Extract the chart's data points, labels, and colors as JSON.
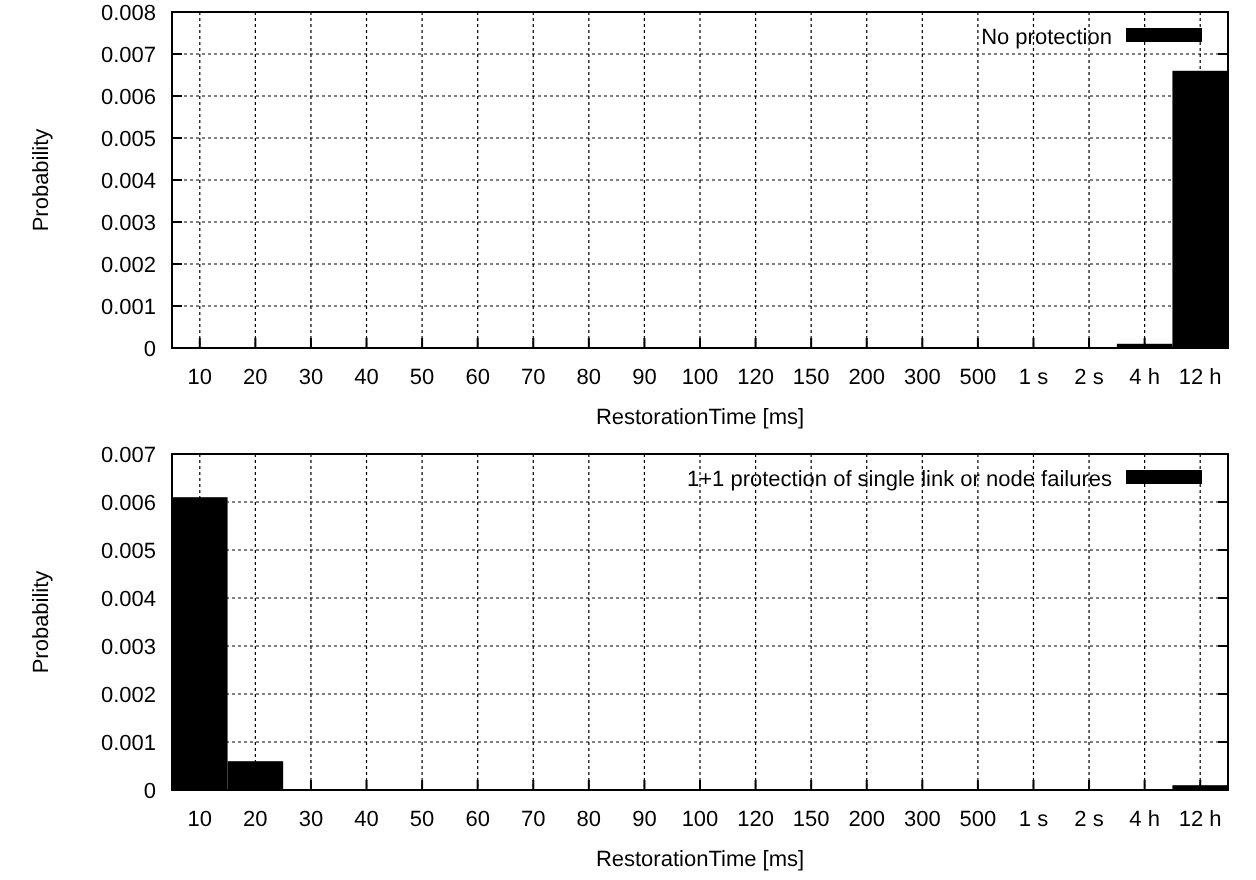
{
  "chart_data": [
    {
      "type": "bar",
      "categories": [
        "10",
        "20",
        "30",
        "40",
        "50",
        "60",
        "70",
        "80",
        "90",
        "100",
        "120",
        "150",
        "200",
        "300",
        "500",
        "1 s",
        "2 s",
        "4 h",
        "12 h"
      ],
      "series": [
        {
          "name": "No protection",
          "color": "#000000",
          "values": [
            0,
            0,
            0,
            0,
            0,
            0,
            0,
            0,
            0,
            0,
            0,
            0,
            0,
            0,
            0,
            0,
            0,
            0.0001,
            0.0066
          ]
        }
      ],
      "xlabel": "RestorationTime [ms]",
      "ylabel": "Probability",
      "ylim": [
        0,
        0.008
      ],
      "yticks": [
        0,
        0.001,
        0.002,
        0.003,
        0.004,
        0.005,
        0.006,
        0.007,
        0.008
      ],
      "grid": true,
      "legend": "top right"
    },
    {
      "type": "bar",
      "categories": [
        "10",
        "20",
        "30",
        "40",
        "50",
        "60",
        "70",
        "80",
        "90",
        "100",
        "120",
        "150",
        "200",
        "300",
        "500",
        "1 s",
        "2 s",
        "4 h",
        "12 h"
      ],
      "series": [
        {
          "name": "1+1 protection of single link or node failures",
          "color": "#000000",
          "values": [
            0.0061,
            0.0006,
            0,
            0,
            0,
            0,
            0,
            0,
            0,
            0,
            0,
            0,
            0,
            0,
            0,
            0,
            0,
            0,
            0.0001
          ]
        }
      ],
      "xlabel": "RestorationTime [ms]",
      "ylabel": "Probability",
      "ylim": [
        0,
        0.007
      ],
      "yticks": [
        0,
        0.001,
        0.002,
        0.003,
        0.004,
        0.005,
        0.006,
        0.007
      ],
      "grid": true,
      "legend": "top right"
    }
  ]
}
